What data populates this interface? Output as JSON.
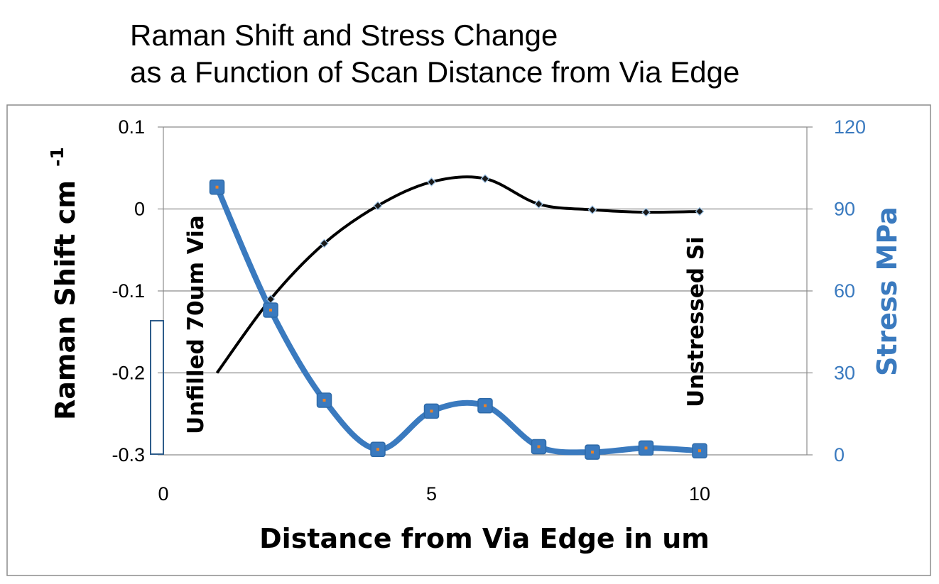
{
  "chart_data": {
    "type": "line",
    "title_lines": [
      "Raman Shift and Stress Change",
      "as a Function of Scan Distance from Via Edge"
    ],
    "xlabel": "Distance from Via Edge in um",
    "ylabel": "Raman Shift cm",
    "ylabel_superscript": "-1",
    "y2label": "Stress  MPa",
    "xlim": [
      0,
      12
    ],
    "ylim": [
      -0.3,
      0.1
    ],
    "y2lim": [
      0,
      120
    ],
    "x_ticks": [
      0,
      5,
      10
    ],
    "y_ticks": [
      0.1,
      0,
      -0.1,
      -0.2,
      -0.3
    ],
    "y2_ticks": [
      120,
      90,
      60,
      30,
      0
    ],
    "grid": "horizontal",
    "annotations": [
      "Unfilled 70um Via",
      "Unstressed Si"
    ],
    "series": [
      {
        "axis": "left",
        "color": "#000000",
        "x": [
          1,
          2,
          3,
          4,
          5,
          6,
          7,
          8,
          9,
          10
        ],
        "values": [
          -0.2,
          -0.11,
          -0.042,
          0.004,
          0.033,
          0.037,
          0.006,
          -0.001,
          -0.004,
          -0.003
        ]
      },
      {
        "axis": "right",
        "color": "#3a7abf",
        "x": [
          1,
          2,
          3,
          4,
          5,
          6,
          7,
          8,
          9,
          10
        ],
        "values": [
          98,
          53,
          20,
          2,
          16,
          18,
          3,
          1,
          2.5,
          1.5
        ]
      }
    ]
  },
  "colors": {
    "stress_axis": "#3a7abf",
    "grid": "#8c8c8c",
    "frame": "#8c8c8c"
  }
}
